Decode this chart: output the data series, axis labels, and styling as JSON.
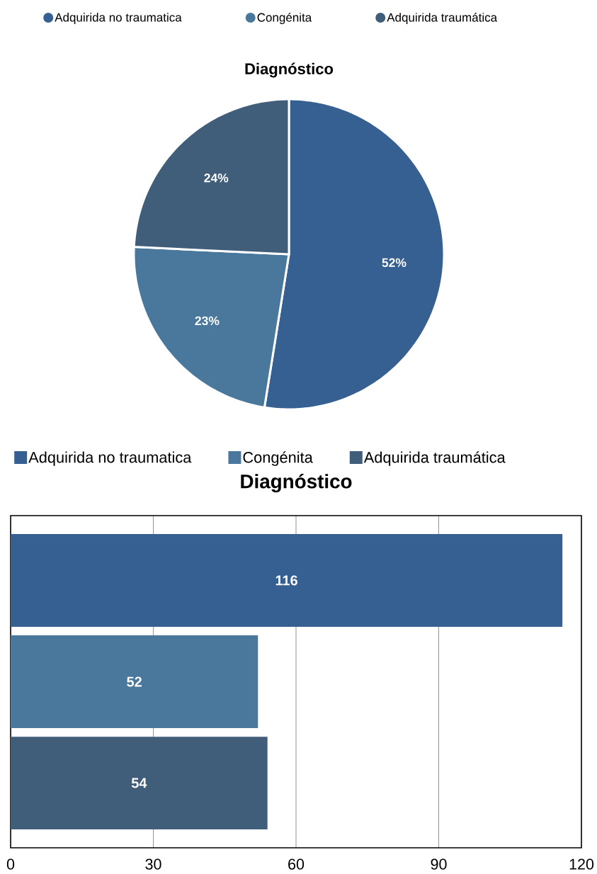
{
  "chart_data": [
    {
      "type": "pie",
      "title": "Diagnóstico",
      "categories": [
        "Adquirida no traumatica",
        "Congénita",
        "Adquirida traumática"
      ],
      "values": [
        52,
        23,
        24
      ],
      "colors": [
        "#376092",
        "#4a789c",
        "#405e7a"
      ],
      "value_labels": [
        "52%",
        "23%",
        "24%"
      ],
      "legend": "top"
    },
    {
      "type": "bar",
      "orientation": "horizontal",
      "title": "Diagnóstico",
      "categories": [
        null
      ],
      "series": [
        {
          "name": "Adquirida no traumatica",
          "color": "#376092",
          "values": [
            116
          ]
        },
        {
          "name": "Congénita",
          "color": "#4a789c",
          "values": [
            52
          ]
        },
        {
          "name": "Adquirida traumática",
          "color": "#405e7a",
          "values": [
            54
          ]
        }
      ],
      "xlim": [
        0,
        120
      ],
      "xticks": [
        0,
        30,
        60,
        90,
        120
      ],
      "grid": "x",
      "legend": "top",
      "data_labels": true
    }
  ]
}
